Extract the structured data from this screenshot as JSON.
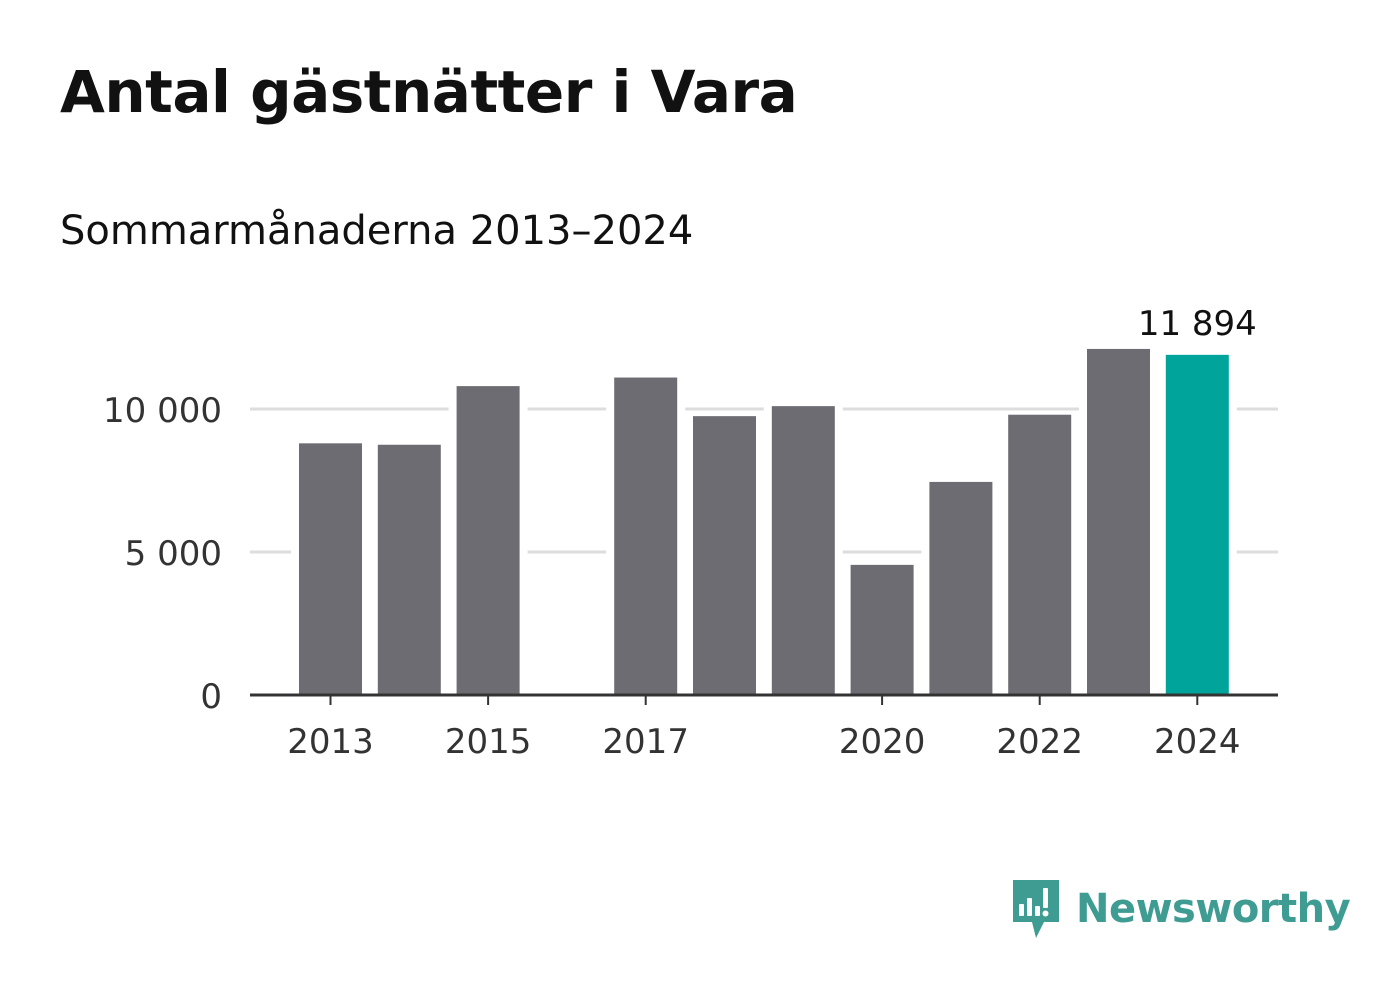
{
  "header": {
    "title": "Antal gästnätter i Vara",
    "subtitle": "Sommarmånaderna 2013–2024"
  },
  "brand": {
    "name": "Newsworthy",
    "icon": "bar-chart-speech-bubble-icon",
    "color": "#3f9c92"
  },
  "chart_data": {
    "type": "bar",
    "categories": [
      "2013",
      "2014",
      "2015",
      "2016",
      "2017",
      "2018",
      "2019",
      "2020",
      "2021",
      "2022",
      "2023",
      "2024"
    ],
    "values": [
      8800,
      8750,
      10800,
      null,
      11100,
      9750,
      10100,
      4550,
      7450,
      9800,
      12100,
      11894
    ],
    "highlight": {
      "category": "2024",
      "label": "11 894"
    },
    "x_tick_labels": [
      "2013",
      "2015",
      "2017",
      "2020",
      "2022",
      "2024"
    ],
    "y_ticks": [
      0,
      5000,
      10000
    ],
    "y_tick_labels": [
      "0",
      "5 000",
      "10 000"
    ],
    "ylim": [
      0,
      13000
    ],
    "grid": true,
    "colors": {
      "bar": "#6d6c72",
      "highlight": "#00a49a",
      "grid": "#dddddd",
      "axis": "#333333"
    },
    "xlabel": "",
    "ylabel": ""
  }
}
